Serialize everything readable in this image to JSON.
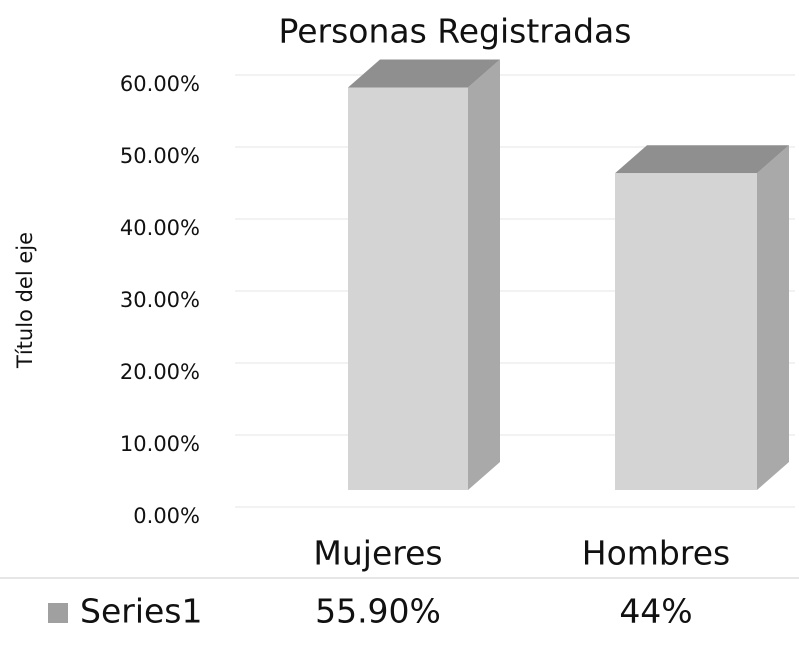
{
  "chart_data": {
    "type": "bar3d",
    "title": "Personas Registradas",
    "y_label": "Título del eje",
    "categories": [
      "Mujeres",
      "Hombres"
    ],
    "series": [
      {
        "name": "Series1",
        "color": "#d4d4d4",
        "values": [
          55.9,
          44
        ],
        "value_labels": [
          "55.90%",
          "44%"
        ]
      }
    ],
    "ylim": [
      0,
      60
    ],
    "yticks": [
      {
        "value": 0,
        "label": "0.00%"
      },
      {
        "value": 10,
        "label": "10.00%"
      },
      {
        "value": 20,
        "label": "20.00%"
      },
      {
        "value": 30,
        "label": "30.00%"
      },
      {
        "value": 40,
        "label": "40.00%"
      },
      {
        "value": 50,
        "label": "50.00%"
      },
      {
        "value": 60,
        "label": "60.00%"
      }
    ],
    "grid": true
  }
}
